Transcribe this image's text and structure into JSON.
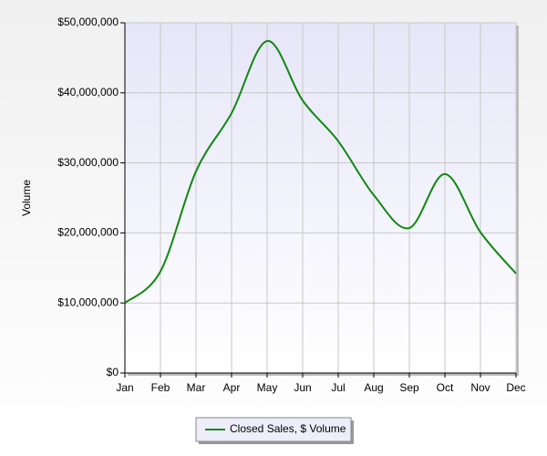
{
  "chart_data": {
    "type": "line",
    "y_label": "Volume",
    "categories": [
      "Jan",
      "Feb",
      "Mar",
      "Apr",
      "May",
      "Jun",
      "Jul",
      "Aug",
      "Sep",
      "Oct",
      "Nov",
      "Dec"
    ],
    "series": [
      {
        "name": "Closed Sales, $ Volume",
        "color": "#118811",
        "values": [
          10000000,
          14500000,
          28800000,
          37100000,
          47400000,
          38900000,
          33100000,
          25400000,
          20700000,
          28400000,
          20100000,
          14200000
        ]
      }
    ],
    "ylim": [
      0,
      50000000
    ],
    "yticks": [
      {
        "value": 0,
        "label": "$0"
      },
      {
        "value": 10000000,
        "label": "$10,000,000"
      },
      {
        "value": 20000000,
        "label": "$20,000,000"
      },
      {
        "value": 30000000,
        "label": "$30,000,000"
      },
      {
        "value": 40000000,
        "label": "$40,000,000"
      },
      {
        "value": 50000000,
        "label": "$50,000,000"
      }
    ],
    "grid": true,
    "legend": "bottom"
  }
}
